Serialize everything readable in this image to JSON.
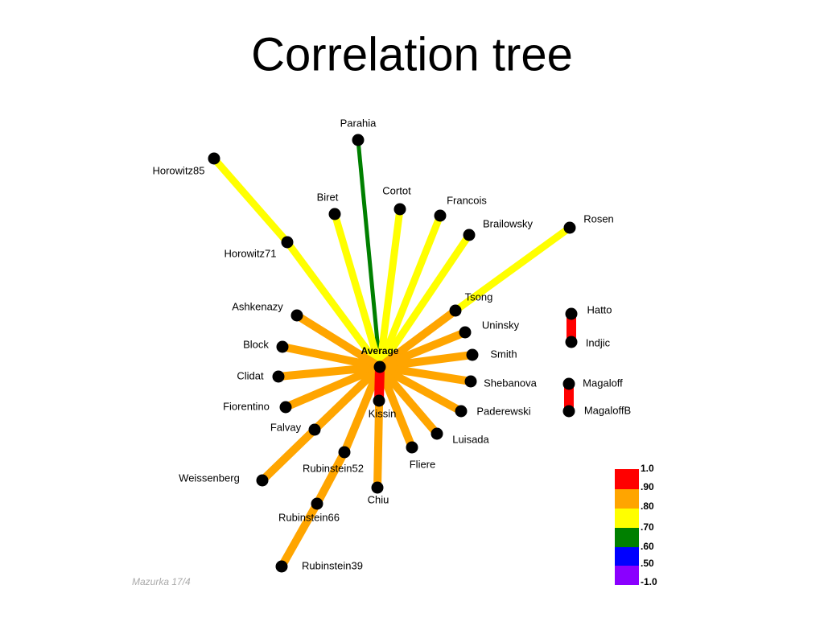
{
  "title": "Correlation tree",
  "nodes": [
    {
      "label": "Average"
    },
    {
      "label": "Parahia"
    },
    {
      "label": "Horowitz85"
    },
    {
      "label": "Horowitz71"
    },
    {
      "label": "Biret"
    },
    {
      "label": "Cortot"
    },
    {
      "label": "Francois"
    },
    {
      "label": "Brailowsky"
    },
    {
      "label": "Rosen"
    },
    {
      "label": "Tsong"
    },
    {
      "label": "Uninsky"
    },
    {
      "label": "Smith"
    },
    {
      "label": "Shebanova"
    },
    {
      "label": "Paderewski"
    },
    {
      "label": "Luisada"
    },
    {
      "label": "Fliere"
    },
    {
      "label": "Chiu"
    },
    {
      "label": "Rubinstein52"
    },
    {
      "label": "Rubinstein66"
    },
    {
      "label": "Rubinstein39"
    },
    {
      "label": "Weissenberg"
    },
    {
      "label": "Falvay"
    },
    {
      "label": "Fiorentino"
    },
    {
      "label": "Clidat"
    },
    {
      "label": "Block"
    },
    {
      "label": "Ashkenazy"
    },
    {
      "label": "Kissin"
    },
    {
      "label": "Hatto"
    },
    {
      "label": "Indjic"
    },
    {
      "label": "Magaloff"
    },
    {
      "label": "MagaloffB"
    }
  ],
  "legend": {
    "labels": [
      "1.0",
      ".90",
      ".80",
      ".70",
      ".60",
      ".50",
      "-1.0"
    ]
  },
  "footer": "Mazurka 17/4"
}
